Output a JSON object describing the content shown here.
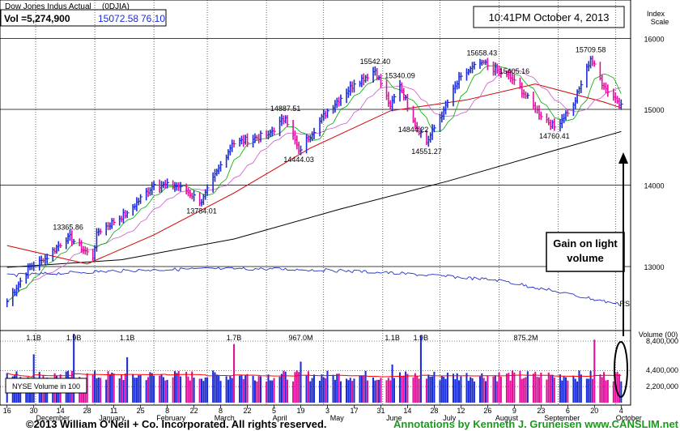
{
  "header": {
    "title": "Dow Jones Indus Actual",
    "symbol": "(0DJIA)",
    "vol_label": "Vol =5,274,900",
    "last": "15072.58",
    "change": "76.10",
    "timestamp": "10:41PM October 4, 2013"
  },
  "scale_label": [
    "Index",
    "Scale"
  ],
  "volume_scale_label": "Volume (00)",
  "nyse_volume_label": "NYSE Volume in 100",
  "rs_label": "RS",
  "callout": [
    "Gain on light",
    "volume"
  ],
  "footer": {
    "copyright": "©2013 William O'Neil + Co. Incorporated. All rights reserved.",
    "annotations": "Annotations by Kenneth J. Gruneisen www.CANSLIM.net"
  },
  "colors": {
    "up": "#1a2bd8",
    "down": "#e0109a",
    "ma50": "#d00000",
    "ma200": "#000000",
    "rs": "#2233cc",
    "ma10": "#00aa00",
    "ma21": "#cc55cc",
    "volume_ma": "#ff0000",
    "grid": "#000000"
  },
  "chart_data": [
    {
      "type": "line",
      "title": "Dow Jones Indus Actual",
      "ylim": [
        12300,
        16400
      ],
      "yticks": [
        13000,
        14000,
        15000,
        16000
      ],
      "scale": "log",
      "x_months": [
        "December",
        "January",
        "February",
        "March",
        "April",
        "May",
        "June",
        "July",
        "August",
        "September",
        "October"
      ],
      "x_day_ticks": [
        "16",
        "30",
        "14",
        "28",
        "11",
        "25",
        "8",
        "22",
        "8",
        "22",
        "5",
        "19",
        "3",
        "17",
        "31",
        "14",
        "28",
        "12",
        "26",
        "9",
        "23",
        "6",
        "20",
        "4"
      ],
      "price_keypoints": [
        {
          "date": "2012-11-16",
          "value": 12590
        },
        {
          "date": "2012-11-28",
          "value": 13000
        },
        {
          "date": "2012-12-05",
          "value": 13070
        },
        {
          "date": "2012-12-18",
          "value": 13365.86
        },
        {
          "date": "2012-12-31",
          "value": 13100
        },
        {
          "date": "2013-01-02",
          "value": 13410
        },
        {
          "date": "2013-01-18",
          "value": 13650
        },
        {
          "date": "2013-02-01",
          "value": 14009
        },
        {
          "date": "2013-02-15",
          "value": 13980
        },
        {
          "date": "2013-02-26",
          "value": 13784.01
        },
        {
          "date": "2013-03-14",
          "value": 14540
        },
        {
          "date": "2013-04-02",
          "value": 14660
        },
        {
          "date": "2013-04-11",
          "value": 14887.51
        },
        {
          "date": "2013-04-18",
          "value": 14444.03
        },
        {
          "date": "2013-05-03",
          "value": 14980
        },
        {
          "date": "2013-05-17",
          "value": 15350
        },
        {
          "date": "2013-05-28",
          "value": 15542.4
        },
        {
          "date": "2013-06-05",
          "value": 15040
        },
        {
          "date": "2013-06-10",
          "value": 15340.09
        },
        {
          "date": "2013-06-17",
          "value": 14844.22
        },
        {
          "date": "2013-06-24",
          "value": 14551.27
        },
        {
          "date": "2013-07-03",
          "value": 14990
        },
        {
          "date": "2013-07-12",
          "value": 15460
        },
        {
          "date": "2013-07-23",
          "value": 15658.43
        },
        {
          "date": "2013-08-01",
          "value": 15520
        },
        {
          "date": "2013-08-09",
          "value": 15405.16
        },
        {
          "date": "2013-08-20",
          "value": 15000
        },
        {
          "date": "2013-08-30",
          "value": 14760.41
        },
        {
          "date": "2013-09-09",
          "value": 15060
        },
        {
          "date": "2013-09-18",
          "value": 15709.58
        },
        {
          "date": "2013-09-25",
          "value": 15310
        },
        {
          "date": "2013-10-04",
          "value": 15072.58
        }
      ],
      "ma50": [
        {
          "date": "2012-11-16",
          "value": 13250
        },
        {
          "date": "2012-12-28",
          "value": 13030
        },
        {
          "date": "2013-02-01",
          "value": 13380
        },
        {
          "date": "2013-03-15",
          "value": 13900
        },
        {
          "date": "2013-04-24",
          "value": 14480
        },
        {
          "date": "2013-06-05",
          "value": 14980
        },
        {
          "date": "2013-07-15",
          "value": 15130
        },
        {
          "date": "2013-08-20",
          "value": 15350
        },
        {
          "date": "2013-09-25",
          "value": 15100
        },
        {
          "date": "2013-10-04",
          "value": 15020
        }
      ],
      "ma200": [
        {
          "date": "2012-11-16",
          "value": 12990
        },
        {
          "date": "2013-01-15",
          "value": 13080
        },
        {
          "date": "2013-03-15",
          "value": 13330
        },
        {
          "date": "2013-05-10",
          "value": 13700
        },
        {
          "date": "2013-07-05",
          "value": 14050
        },
        {
          "date": "2013-08-26",
          "value": 14420
        },
        {
          "date": "2013-10-04",
          "value": 14700
        }
      ],
      "annotations": [
        {
          "date": "2012-12-18",
          "value": 13365.86,
          "label": "13365.86"
        },
        {
          "date": "2013-02-26",
          "value": 13784.01,
          "label": "13784.01",
          "below": true
        },
        {
          "date": "2013-04-11",
          "value": 14887.51,
          "label": "14887.51"
        },
        {
          "date": "2013-04-18",
          "value": 14444.03,
          "label": "14444.03",
          "below": true
        },
        {
          "date": "2013-05-28",
          "value": 15542.4,
          "label": "15542.40"
        },
        {
          "date": "2013-06-10",
          "value": 15340.09,
          "label": "15340.09"
        },
        {
          "date": "2013-06-17",
          "value": 14844.22,
          "label": "14844.22",
          "below": true
        },
        {
          "date": "2013-06-24",
          "value": 14551.27,
          "label": "14551.27",
          "below": true
        },
        {
          "date": "2013-07-23",
          "value": 15658.43,
          "label": "15658.43"
        },
        {
          "date": "2013-08-09",
          "value": 15405.16,
          "label": "15405.16"
        },
        {
          "date": "2013-08-30",
          "value": 14760.41,
          "label": "14760.41",
          "below": true
        },
        {
          "date": "2013-09-18",
          "value": 15709.58,
          "label": "15709.58"
        }
      ]
    },
    {
      "type": "bar",
      "title": "Volume (00)",
      "yticks": [
        {
          "value": 8400000,
          "label": "8,400,000"
        },
        {
          "value": 4400000,
          "label": "4,400,000"
        },
        {
          "value": 2200000,
          "label": "2,200,000"
        }
      ],
      "volume_annotations": [
        {
          "date": "2012-11-30",
          "label": "1.1B"
        },
        {
          "date": "2012-12-21",
          "label": "1.9B"
        },
        {
          "date": "2013-01-18",
          "label": "1.1B"
        },
        {
          "date": "2013-03-15",
          "label": "1.7B"
        },
        {
          "date": "2013-04-19",
          "label": "967.0M"
        },
        {
          "date": "2013-06-06",
          "label": "1.1B"
        },
        {
          "date": "2013-06-21",
          "label": "1.9B"
        },
        {
          "date": "2013-08-15",
          "label": "875.2M"
        }
      ]
    }
  ]
}
